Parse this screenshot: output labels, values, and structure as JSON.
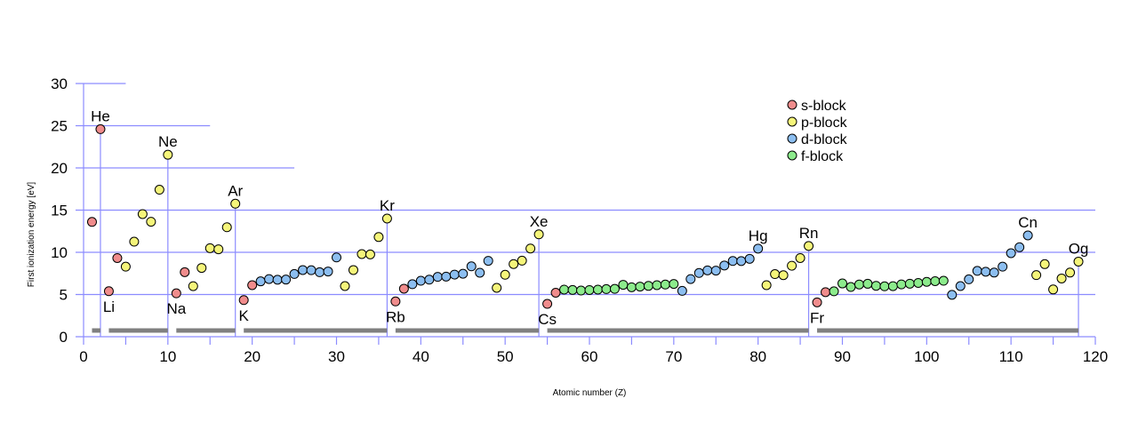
{
  "chart_data": {
    "type": "scatter",
    "title": "",
    "xlabel": "Atomic number (Z)",
    "ylabel": "First ionization energy [eV]",
    "xlim": [
      0,
      120
    ],
    "ylim": [
      0,
      30
    ],
    "x_ticks": [
      0,
      10,
      20,
      30,
      40,
      50,
      60,
      70,
      80,
      90,
      100,
      110,
      120
    ],
    "y_ticks": [
      0,
      5,
      10,
      15,
      20,
      25,
      30
    ],
    "grid": true,
    "legend_position": "top-right",
    "colors": {
      "grid": "#8c8cff",
      "period_bar": "#808080",
      "marker_edge": "#000000"
    },
    "series": [
      {
        "name": "s-block",
        "color": "#f08c8c",
        "x": [
          1,
          2,
          3,
          4,
          11,
          12,
          19,
          20,
          37,
          38,
          55,
          56,
          87,
          88
        ],
        "y": [
          13.6,
          24.59,
          5.39,
          9.32,
          5.14,
          7.65,
          4.34,
          6.11,
          4.18,
          5.69,
          3.89,
          5.21,
          4.07,
          5.28
        ]
      },
      {
        "name": "p-block",
        "color": "#f5f57a",
        "x": [
          5,
          6,
          7,
          8,
          9,
          10,
          13,
          14,
          15,
          16,
          17,
          18,
          31,
          32,
          33,
          34,
          35,
          36,
          49,
          50,
          51,
          52,
          53,
          54,
          81,
          82,
          83,
          84,
          85,
          86,
          113,
          114,
          115,
          116,
          117,
          118
        ],
        "y": [
          8.3,
          11.26,
          14.53,
          13.62,
          17.42,
          21.56,
          5.99,
          8.15,
          10.49,
          10.36,
          12.97,
          15.76,
          6.0,
          7.9,
          9.79,
          9.75,
          11.81,
          14.0,
          5.79,
          7.34,
          8.61,
          9.01,
          10.45,
          12.13,
          6.11,
          7.42,
          7.29,
          8.41,
          9.32,
          10.75,
          7.3,
          8.6,
          5.6,
          6.9,
          7.6,
          8.9
        ]
      },
      {
        "name": "d-block",
        "color": "#8cbef0",
        "x": [
          21,
          22,
          23,
          24,
          25,
          26,
          27,
          28,
          29,
          30,
          39,
          40,
          41,
          42,
          43,
          44,
          45,
          46,
          47,
          48,
          71,
          72,
          73,
          74,
          75,
          76,
          77,
          78,
          79,
          80,
          103,
          104,
          105,
          106,
          107,
          108,
          109,
          110,
          111,
          112
        ],
        "y": [
          6.56,
          6.83,
          6.75,
          6.77,
          7.43,
          7.9,
          7.88,
          7.64,
          7.73,
          9.39,
          6.22,
          6.63,
          6.76,
          7.09,
          7.12,
          7.36,
          7.46,
          8.34,
          7.58,
          8.99,
          5.43,
          6.83,
          7.55,
          7.86,
          7.83,
          8.44,
          8.97,
          8.96,
          9.23,
          10.44,
          4.96,
          6.0,
          6.8,
          7.8,
          7.7,
          7.6,
          8.3,
          9.9,
          10.6,
          12.0
        ]
      },
      {
        "name": "f-block",
        "color": "#8ceb8c",
        "x": [
          57,
          58,
          59,
          60,
          61,
          62,
          63,
          64,
          65,
          66,
          67,
          68,
          69,
          70,
          89,
          90,
          91,
          92,
          93,
          94,
          95,
          96,
          97,
          98,
          99,
          100,
          101,
          102
        ],
        "y": [
          5.58,
          5.54,
          5.47,
          5.53,
          5.58,
          5.64,
          5.67,
          6.15,
          5.86,
          5.94,
          6.02,
          6.11,
          6.18,
          6.25,
          5.38,
          6.31,
          5.89,
          6.19,
          6.27,
          6.03,
          5.97,
          5.99,
          6.2,
          6.28,
          6.37,
          6.5,
          6.58,
          6.63
        ]
      }
    ],
    "annotations": [
      {
        "z": 2,
        "text": "He",
        "position": "above"
      },
      {
        "z": 10,
        "text": "Ne",
        "position": "above"
      },
      {
        "z": 18,
        "text": "Ar",
        "position": "above"
      },
      {
        "z": 36,
        "text": "Kr",
        "position": "above"
      },
      {
        "z": 54,
        "text": "Xe",
        "position": "above"
      },
      {
        "z": 80,
        "text": "Hg",
        "position": "above"
      },
      {
        "z": 86,
        "text": "Rn",
        "position": "above"
      },
      {
        "z": 112,
        "text": "Cn",
        "position": "above"
      },
      {
        "z": 118,
        "text": "Og",
        "position": "above"
      },
      {
        "z": 3,
        "text": "Li",
        "position": "below"
      },
      {
        "z": 11,
        "text": "Na",
        "position": "below"
      },
      {
        "z": 19,
        "text": "K",
        "position": "below"
      },
      {
        "z": 37,
        "text": "Rb",
        "position": "below"
      },
      {
        "z": 55,
        "text": "Cs",
        "position": "below"
      },
      {
        "z": 87,
        "text": "Fr",
        "position": "below"
      }
    ],
    "noble_gas_lines": [
      2,
      10,
      18,
      36,
      54,
      86,
      118
    ],
    "period_bars": [
      [
        1,
        2
      ],
      [
        3,
        10
      ],
      [
        11,
        18
      ],
      [
        19,
        36
      ],
      [
        37,
        54
      ],
      [
        55,
        86
      ],
      [
        87,
        118
      ]
    ]
  }
}
